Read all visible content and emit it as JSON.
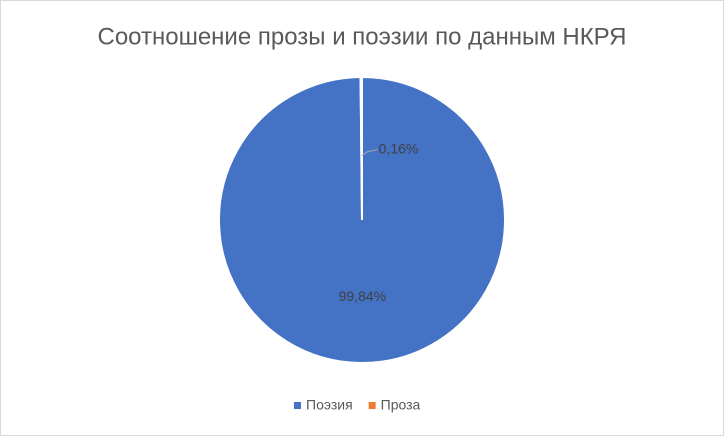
{
  "chart_data": {
    "type": "pie",
    "title": "Соотношение прозы и поэзии по данным НКРЯ",
    "categories": [
      "Поэзия",
      "Проза"
    ],
    "values": [
      99.84,
      0.16
    ],
    "value_labels": [
      "99,84%",
      "0,16%"
    ],
    "colors": [
      "#4472c4",
      "#ed7d31"
    ],
    "legend": "bottom"
  }
}
